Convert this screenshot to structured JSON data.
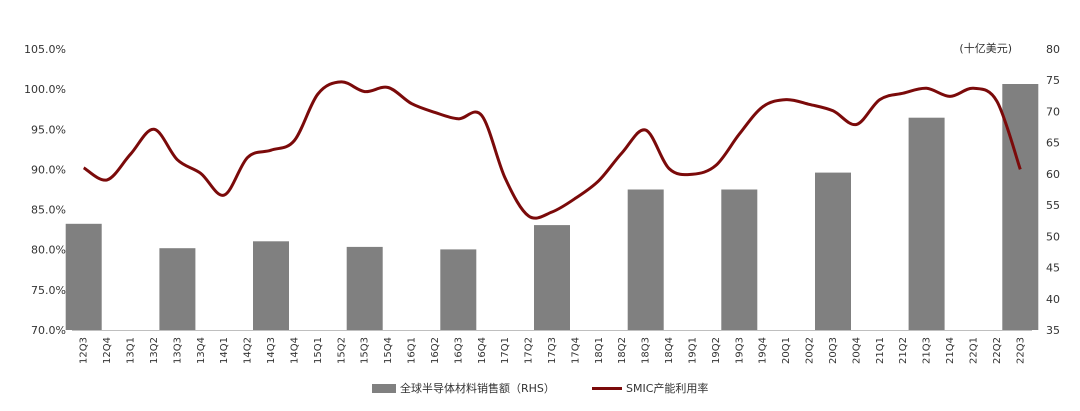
{
  "chart_data": {
    "type": "bar+line",
    "categories": [
      "12Q3",
      "12Q4",
      "13Q1",
      "13Q2",
      "13Q3",
      "13Q4",
      "14Q1",
      "14Q2",
      "14Q3",
      "14Q4",
      "15Q1",
      "15Q2",
      "15Q3",
      "15Q4",
      "16Q1",
      "16Q2",
      "16Q3",
      "16Q4",
      "17Q1",
      "17Q2",
      "17Q3",
      "17Q4",
      "18Q1",
      "18Q2",
      "18Q3",
      "18Q4",
      "19Q1",
      "19Q2",
      "19Q3",
      "19Q4",
      "20Q1",
      "20Q2",
      "20Q3",
      "20Q4",
      "21Q1",
      "21Q2",
      "21Q3",
      "21Q4",
      "22Q1",
      "22Q2",
      "22Q3"
    ],
    "series": [
      {
        "name": "全球半导体材料销售额（RHS）",
        "type": "bar",
        "axis": "right",
        "color": "#808080",
        "values": [
          52.0,
          null,
          null,
          null,
          48.1,
          null,
          null,
          null,
          49.2,
          null,
          null,
          null,
          48.3,
          null,
          null,
          null,
          47.9,
          null,
          null,
          null,
          51.8,
          null,
          null,
          null,
          57.5,
          null,
          null,
          null,
          57.5,
          null,
          null,
          null,
          60.2,
          null,
          null,
          null,
          69.0,
          null,
          null,
          null,
          74.4
        ]
      },
      {
        "name": "SMIC产能利用率",
        "type": "line",
        "axis": "left",
        "color": "#7B0A0A",
        "values": [
          0.902,
          0.887,
          0.919,
          0.95,
          0.912,
          0.895,
          0.868,
          0.915,
          0.924,
          0.936,
          0.994,
          1.009,
          0.997,
          1.002,
          0.982,
          0.971,
          0.963,
          0.967,
          0.889,
          0.842,
          0.847,
          0.864,
          0.886,
          0.921,
          0.949,
          0.901,
          0.894,
          0.905,
          0.944,
          0.978,
          0.987,
          0.981,
          0.973,
          0.956,
          0.987,
          0.995,
          1.001,
          0.991,
          1.001,
          0.985,
          0.9
        ]
      }
    ],
    "y_left": {
      "min": 0.7,
      "max": 1.05,
      "step": 0.05,
      "ticks": [
        "70.0%",
        "75.0%",
        "80.0%",
        "85.0%",
        "90.0%",
        "95.0%",
        "100.0%",
        "105.0%"
      ]
    },
    "y_right": {
      "min": 35,
      "max": 80,
      "step": 5,
      "ticks": [
        "35",
        "40",
        "45",
        "50",
        "55",
        "60",
        "65",
        "70",
        "75",
        "80"
      ],
      "unit": "(十亿美元)"
    },
    "grid": false,
    "legend": "bottom-center"
  }
}
